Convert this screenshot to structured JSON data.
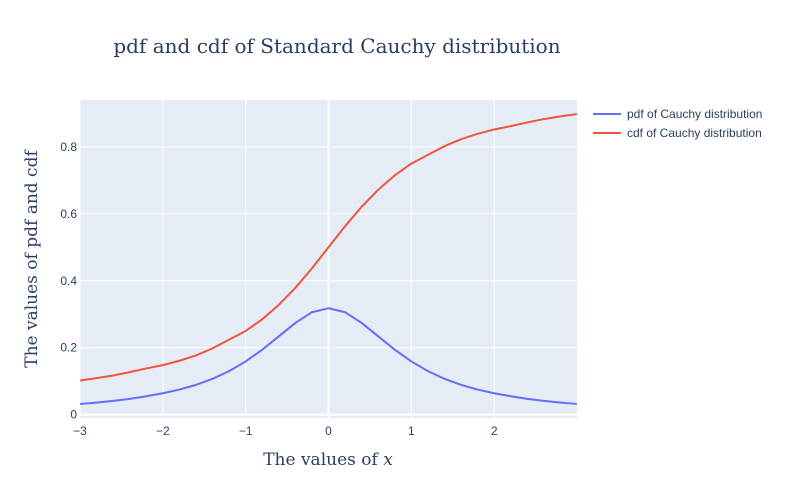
{
  "chart_data": {
    "type": "line",
    "title": "pdf and cdf of Standard Cauchy distribution",
    "xlabel": "The values of x",
    "ylabel": "The values of pdf and cdf",
    "xlim": [
      -3,
      3
    ],
    "ylim": [
      -0.01,
      0.94
    ],
    "x_ticks": [
      -3,
      -2,
      -1,
      0,
      1,
      2
    ],
    "x_tick_labels": [
      "−3",
      "−2",
      "−1",
      "0",
      "1",
      "2"
    ],
    "y_ticks": [
      0,
      0.2,
      0.4,
      0.6,
      0.8
    ],
    "y_tick_labels": [
      "0",
      "0.2",
      "0.4",
      "0.6",
      "0.8"
    ],
    "grid": true,
    "legend_position": "top-right outside",
    "x": [
      -3.0,
      -2.8,
      -2.6,
      -2.4,
      -2.2,
      -2.0,
      -1.8,
      -1.6,
      -1.4,
      -1.2,
      -1.0,
      -0.8,
      -0.6,
      -0.4,
      -0.2,
      0.0,
      0.2,
      0.4,
      0.6,
      0.8,
      1.0,
      1.2,
      1.4,
      1.6,
      1.8,
      2.0,
      2.2,
      2.4,
      2.6,
      2.8,
      3.0
    ],
    "series": [
      {
        "name": "pdf of Cauchy distribution",
        "color": "#636efa",
        "values": [
          0.032,
          0.036,
          0.041,
          0.047,
          0.055,
          0.064,
          0.075,
          0.089,
          0.107,
          0.13,
          0.159,
          0.194,
          0.234,
          0.274,
          0.306,
          0.318,
          0.306,
          0.274,
          0.234,
          0.194,
          0.159,
          0.13,
          0.107,
          0.089,
          0.075,
          0.064,
          0.055,
          0.047,
          0.041,
          0.036,
          0.032
        ]
      },
      {
        "name": "cdf of Cauchy distribution",
        "color": "#ef553b",
        "values": [
          0.102,
          0.109,
          0.117,
          0.127,
          0.138,
          0.148,
          0.161,
          0.177,
          0.198,
          0.224,
          0.25,
          0.285,
          0.328,
          0.379,
          0.437,
          0.5,
          0.563,
          0.621,
          0.672,
          0.715,
          0.75,
          0.776,
          0.802,
          0.823,
          0.839,
          0.852,
          0.862,
          0.873,
          0.883,
          0.891,
          0.898
        ]
      }
    ]
  }
}
